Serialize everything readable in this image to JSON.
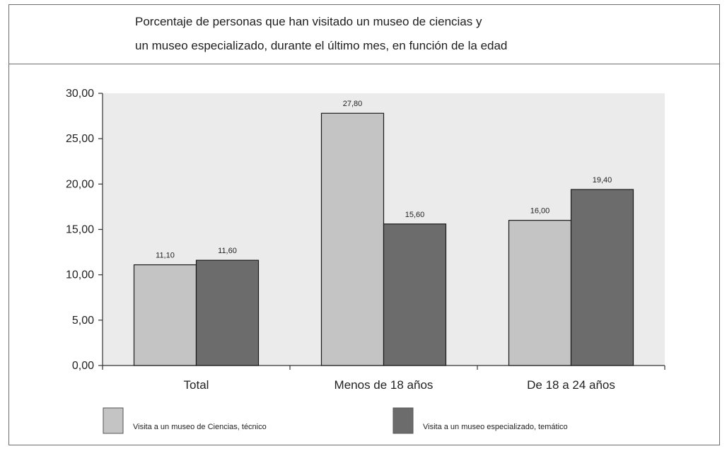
{
  "chart_data": {
    "type": "bar",
    "title_lines": [
      "Porcentaje de personas que han visitado un museo de ciencias y",
      "un museo especializado, durante el último mes, en función de la edad"
    ],
    "categories": [
      "Total",
      "Menos de 18 años",
      "De 18 a 24 años"
    ],
    "series": [
      {
        "name": "Visita a un museo de Ciencias, técnico",
        "values": [
          11.1,
          27.8,
          16.0
        ],
        "labels": [
          "11,10",
          "27,80",
          "16,00"
        ],
        "color": "#c4c4c4"
      },
      {
        "name": "Visita a un museo especializado, temático",
        "values": [
          11.6,
          15.6,
          19.4
        ],
        "labels": [
          "11,60",
          "15,60",
          "19,40"
        ],
        "color": "#6c6c6c"
      }
    ],
    "yticks": [
      "0,00",
      "5,00",
      "10,00",
      "15,00",
      "20,00",
      "25,00",
      "30,00"
    ],
    "ylim": [
      0,
      30
    ],
    "xlabel": "",
    "ylabel": "",
    "grid": false,
    "legend_position": "bottom",
    "plot_background": "#ebebeb",
    "bar_outline": "#1a1a1a"
  }
}
